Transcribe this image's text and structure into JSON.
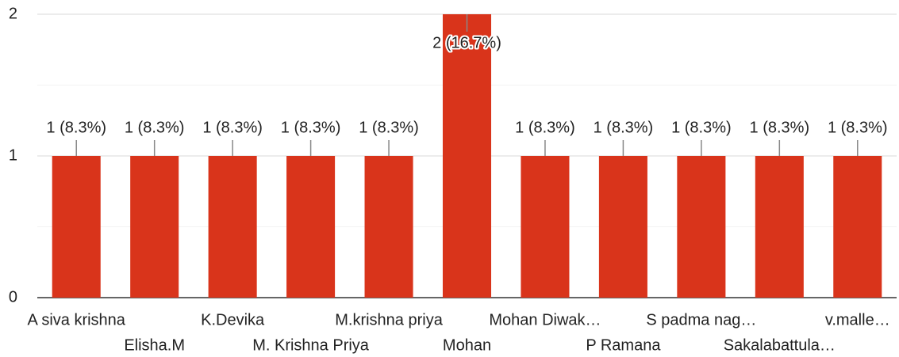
{
  "chart_data": {
    "type": "bar",
    "categories": [
      "A siva krishna",
      "Elisha.M",
      "K.Devika",
      "M. Krishna Priya",
      "M.krishna priya",
      "Mohan",
      "Mohan Diwak…",
      "P Ramana",
      "S padma nag…",
      "Sakalabattula…",
      "v.malle…"
    ],
    "values": [
      1,
      1,
      1,
      1,
      1,
      2,
      1,
      1,
      1,
      1,
      1
    ],
    "value_labels": [
      "1 (8.3%)",
      "1 (8.3%)",
      "1 (8.3%)",
      "1 (8.3%)",
      "1 (8.3%)",
      "2 (16.7%)",
      "1 (8.3%)",
      "1 (8.3%)",
      "1 (8.3%)",
      "1 (8.3%)",
      "1 (8.3%)"
    ],
    "color": "#d9341b",
    "ylim": [
      0,
      2
    ],
    "yticks": [
      0,
      1,
      2
    ],
    "minor_yticks": [
      0.5,
      1.5
    ],
    "grid": true
  }
}
